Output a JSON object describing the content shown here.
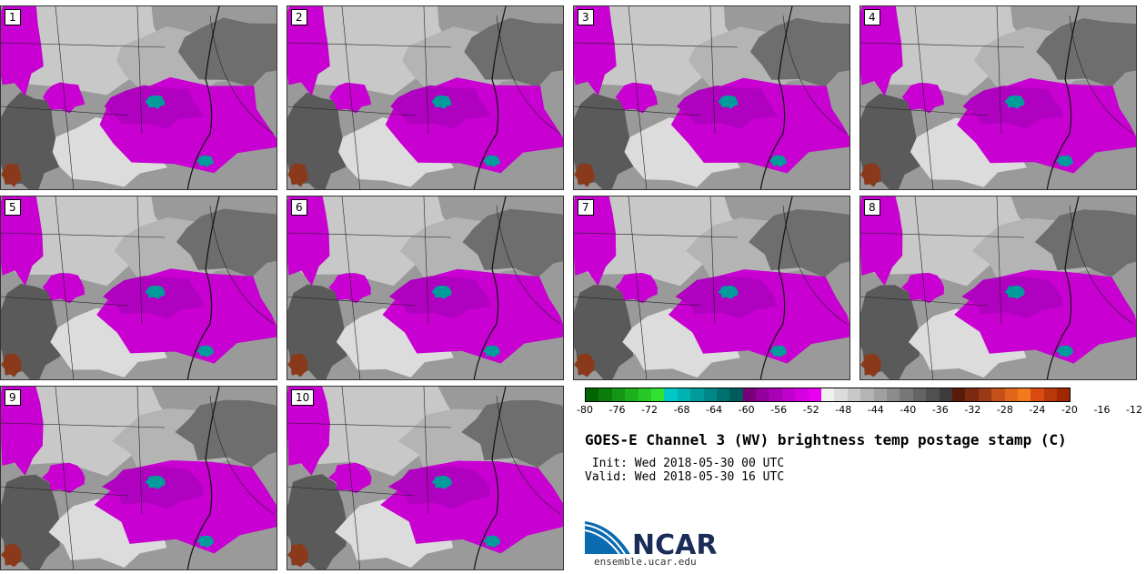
{
  "panels": [
    "1",
    "2",
    "3",
    "4",
    "5",
    "6",
    "7",
    "8",
    "9",
    "10"
  ],
  "colorbar": {
    "colors": [
      "#006400",
      "#0a7d0a",
      "#139613",
      "#1daf1d",
      "#27c827",
      "#30e130",
      "#00c8c8",
      "#00b2b2",
      "#009c9c",
      "#008787",
      "#007171",
      "#005c5c",
      "#7a007a",
      "#91009a",
      "#a800b4",
      "#bf00cc",
      "#d500e0",
      "#ea00f0",
      "#f0f0f0",
      "#dcdcdc",
      "#c8c8c8",
      "#b4b4b4",
      "#a0a0a0",
      "#8c8c8c",
      "#787878",
      "#646464",
      "#505050",
      "#3c3c3c",
      "#5a1a0a",
      "#7a2a10",
      "#9a3a14",
      "#c25018",
      "#e0661a",
      "#f07a1c",
      "#d84a10",
      "#b83808",
      "#a02800"
    ],
    "ticks": [
      "-80",
      "-76",
      "-72",
      "-68",
      "-64",
      "-60",
      "-56",
      "-52",
      "-48",
      "-44",
      "-40",
      "-36",
      "-32",
      "-28",
      "-24",
      "-20",
      "-16",
      "-12"
    ]
  },
  "title": "GOES-E Channel 3 (WV) brightness temp postage stamp (C)",
  "init": " Init: Wed 2018-05-30 00 UTC",
  "valid": "Valid: Wed 2018-05-30 16 UTC",
  "logo_text": "NCAR",
  "logo_url": "ensemble.ucar.edu"
}
